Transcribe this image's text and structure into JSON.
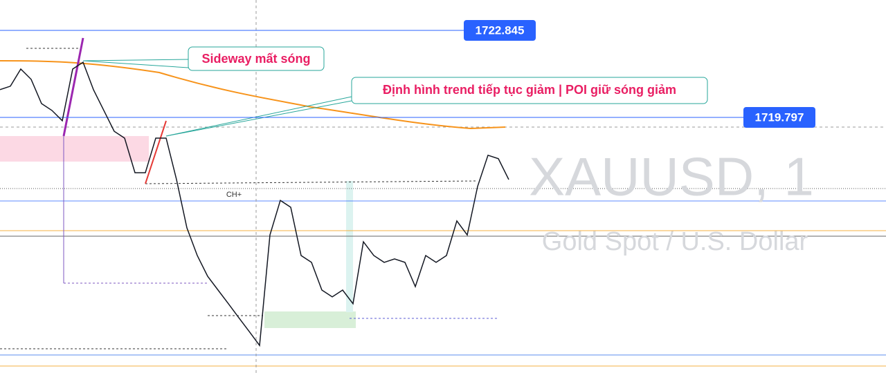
{
  "chart_data": {
    "type": "line",
    "symbol": "XAUUSD, 1",
    "description": "Gold Spot / U.S. Dollar",
    "annotations": [
      "Sideway mất sóng",
      "Định hình trend tiếp tục giảm | POI giữ sóng giảm",
      "CH+"
    ],
    "price_labels": [
      1722.845,
      1719.797
    ],
    "ylim": [
      1710.774,
      1723.909
    ],
    "categories": [
      null,
      null,
      null,
      null,
      null,
      null,
      null,
      null,
      null,
      null,
      null,
      null,
      null,
      null,
      null,
      null,
      null,
      null,
      null,
      null,
      null,
      null,
      null,
      null,
      null,
      null,
      null,
      null,
      null,
      null,
      null,
      null,
      null,
      null,
      null,
      null,
      null,
      null,
      null,
      null,
      null,
      null,
      null,
      null,
      null,
      null,
      null,
      null,
      null,
      null
    ],
    "series": [
      {
        "color": "#131722",
        "values": [
          1720.77,
          1720.89,
          1721.49,
          1721.13,
          1720.28,
          1720.04,
          1719.68,
          1721.49,
          1721.73,
          1720.77,
          1720.04,
          1719.31,
          1719.07,
          1717.86,
          1717.86,
          1719.07,
          1719.07,
          1717.62,
          1715.93,
          1714.96,
          1714.23,
          1713.75,
          1713.27,
          1712.78,
          1712.3,
          1711.81,
          1715.68,
          1716.89,
          1716.65,
          1714.96,
          1714.72,
          1713.75,
          1713.51,
          1713.75,
          1713.27,
          1715.44,
          1714.96,
          1714.72,
          1714.84,
          1714.72,
          1713.87,
          1714.96,
          1714.72,
          1714.96,
          1716.17,
          1715.68,
          1717.38,
          1718.47,
          1718.35,
          1717.62
        ]
      }
    ],
    "label_color": "#2962ff"
  }
}
